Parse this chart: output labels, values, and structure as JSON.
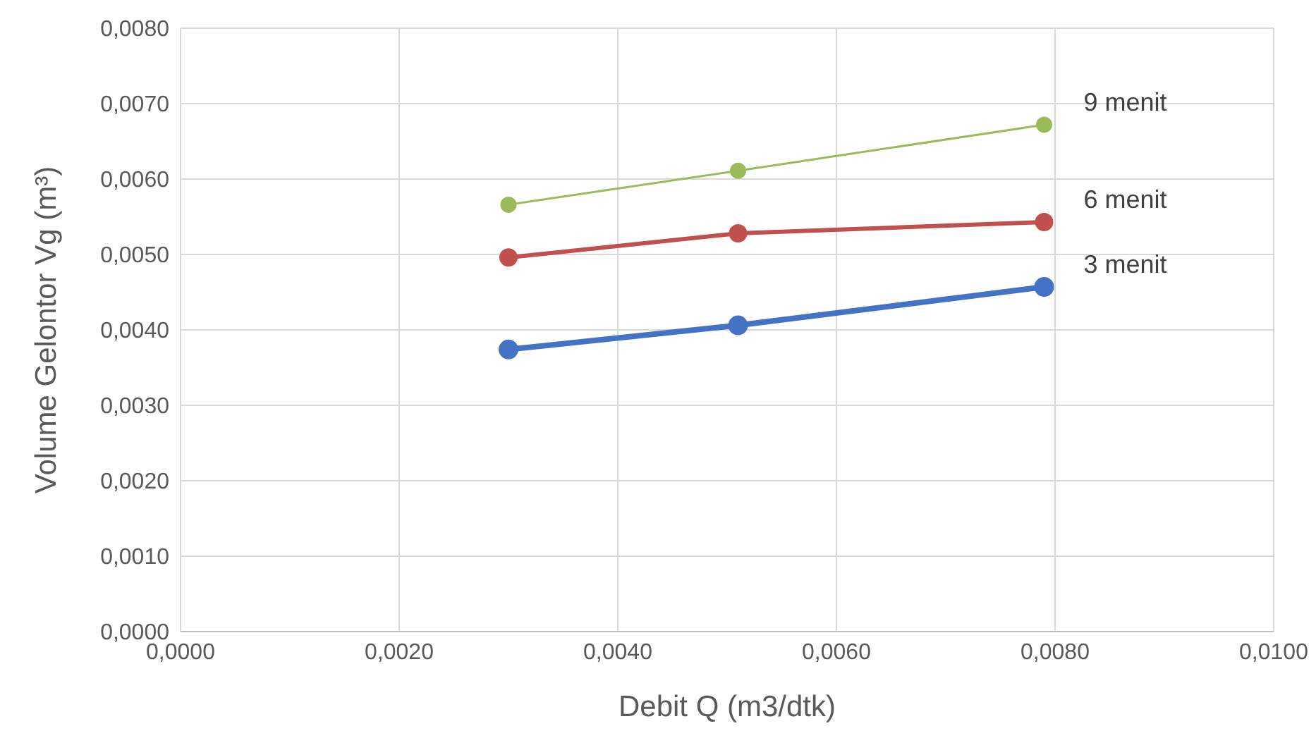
{
  "chart_data": {
    "type": "line",
    "xlabel": "Debit Q (m3/dtk)",
    "ylabel": "Volume Gelontor Vg (m³)",
    "x": [
      0.003,
      0.0051,
      0.0079
    ],
    "series": [
      {
        "name": "3 menit",
        "color": "#4472c4",
        "values": [
          0.00374,
          0.00406,
          0.00457
        ]
      },
      {
        "name": "6 menit",
        "color": "#c0504d",
        "values": [
          0.00496,
          0.00528,
          0.00543
        ]
      },
      {
        "name": "9 menit",
        "color": "#9bbb59",
        "values": [
          0.00566,
          0.00611,
          0.00672
        ]
      }
    ],
    "xlim": [
      0,
      0.01
    ],
    "xticks": [
      {
        "value": 0,
        "label": "0,0000"
      },
      {
        "value": 0.002,
        "label": "0,0020"
      },
      {
        "value": 0.004,
        "label": "0,0040"
      },
      {
        "value": 0.006,
        "label": "0,0060"
      },
      {
        "value": 0.008,
        "label": "0,0080"
      },
      {
        "value": 0.01,
        "label": "0,0100"
      }
    ],
    "ylim": [
      0,
      0.008
    ],
    "yticks": [
      {
        "value": 0,
        "label": "0,0000"
      },
      {
        "value": 0.001,
        "label": "0,0010"
      },
      {
        "value": 0.002,
        "label": "0,0020"
      },
      {
        "value": 0.003,
        "label": "0,0030"
      },
      {
        "value": 0.004,
        "label": "0,0040"
      },
      {
        "value": 0.005,
        "label": "0,0050"
      },
      {
        "value": 0.006,
        "label": "0,0060"
      },
      {
        "value": 0.007,
        "label": "0,0070"
      },
      {
        "value": 0.008,
        "label": "0,0080"
      }
    ],
    "grid": true,
    "legend": false,
    "marker": "circle",
    "line_style": "solid"
  }
}
